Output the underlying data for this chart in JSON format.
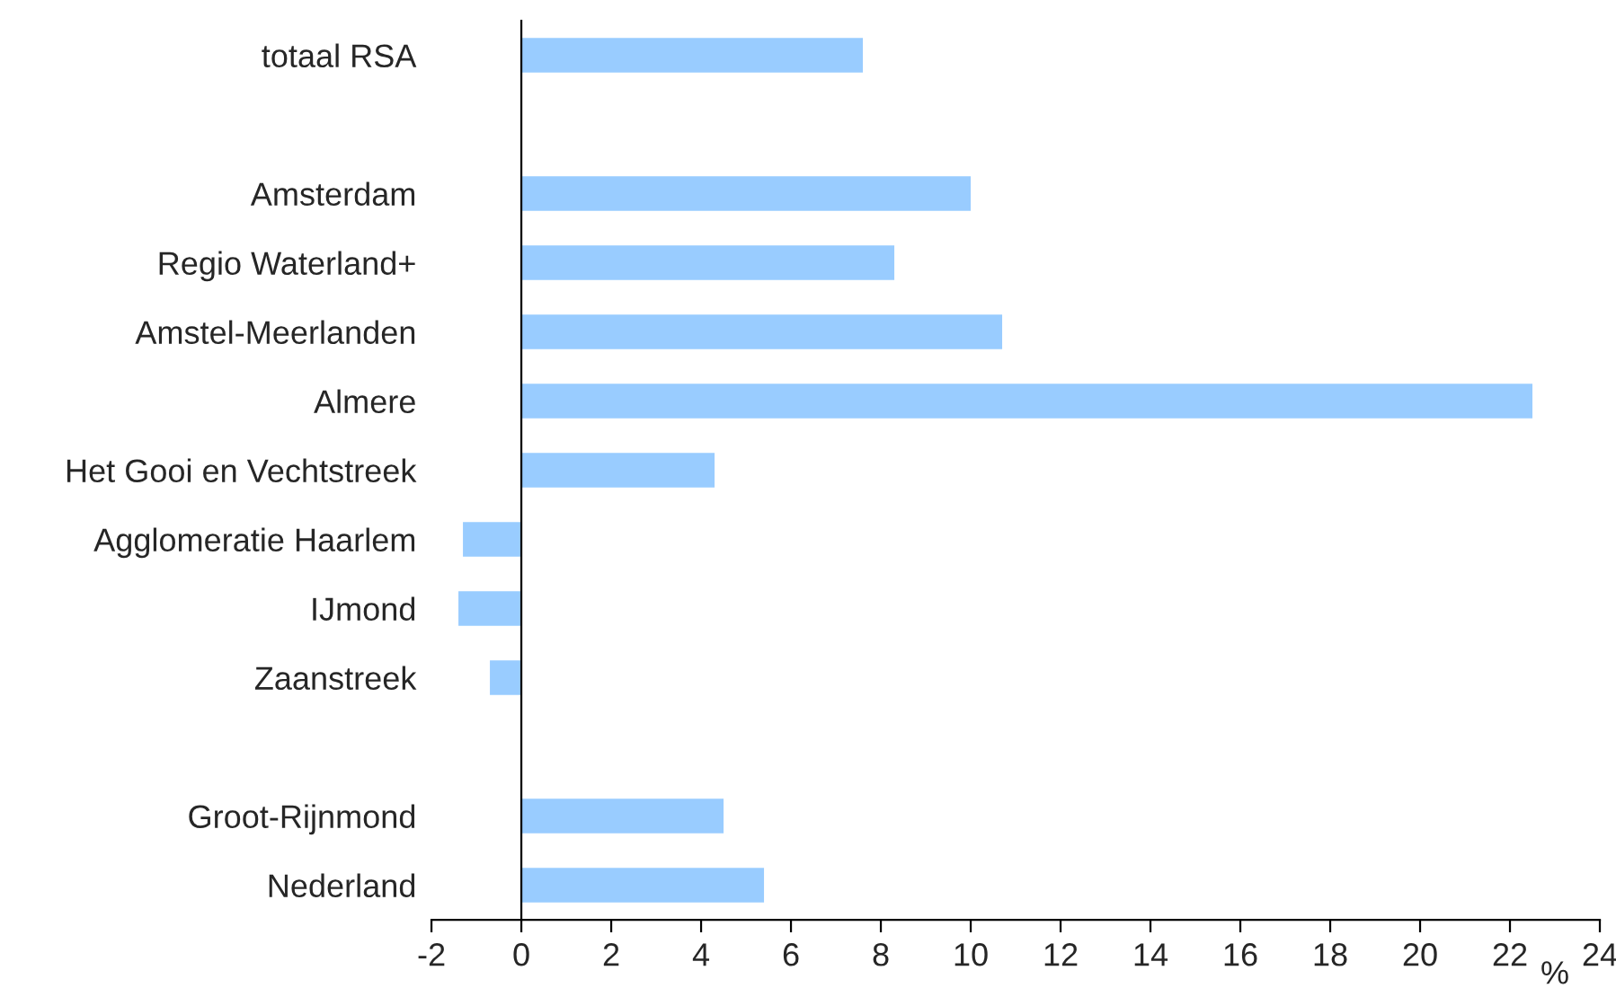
{
  "chart_data": {
    "type": "bar",
    "orientation": "horizontal",
    "xlabel": "%",
    "categories": [
      "totaal RSA",
      null,
      "Amsterdam",
      "Regio Waterland+",
      "Amstel-Meerlanden",
      "Almere",
      "Het Gooi en Vechtstreek",
      "Agglomeratie Haarlem",
      "IJmond",
      "Zaanstreek",
      null,
      "Groot-Rijnmond",
      "Nederland"
    ],
    "values": [
      7.6,
      null,
      10.0,
      8.3,
      10.7,
      22.5,
      4.3,
      -1.3,
      -1.4,
      -0.7,
      null,
      4.5,
      5.4
    ],
    "color": "#99ccff",
    "xlim": [
      -2,
      24
    ],
    "xticks": [
      -2,
      0,
      2,
      4,
      6,
      8,
      10,
      12,
      14,
      16,
      18,
      20,
      22,
      24
    ],
    "legend": false
  }
}
